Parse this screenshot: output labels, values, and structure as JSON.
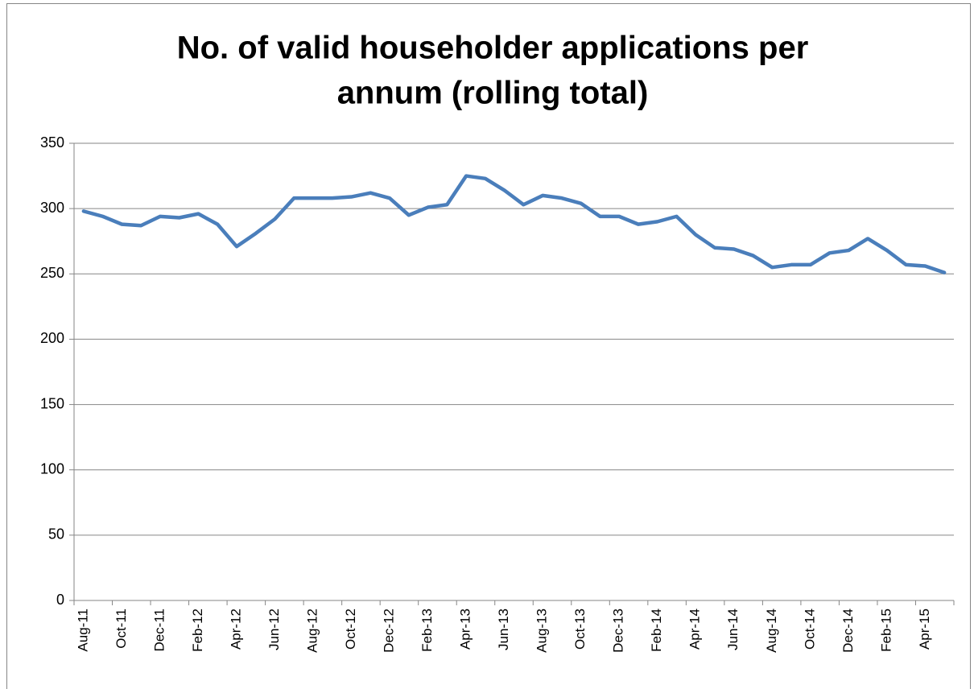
{
  "chart_data": {
    "type": "line",
    "title": [
      "No. of valid householder applications per",
      "annum (rolling total)"
    ],
    "categories": [
      "Aug-11",
      null,
      "Oct-11",
      null,
      "Dec-11",
      null,
      "Feb-12",
      null,
      "Apr-12",
      null,
      "Jun-12",
      null,
      "Aug-12",
      null,
      "Oct-12",
      null,
      "Dec-12",
      null,
      "Feb-13",
      null,
      "Apr-13",
      null,
      "Jun-13",
      null,
      "Aug-13",
      null,
      "Oct-13",
      null,
      "Dec-13",
      null,
      "Feb-14",
      null,
      "Apr-14",
      null,
      "Jun-14",
      null,
      "Aug-14",
      null,
      "Oct-14",
      null,
      "Dec-14",
      null,
      "Feb-15",
      null,
      "Apr-15",
      null
    ],
    "values": [
      298,
      294,
      288,
      287,
      294,
      293,
      296,
      288,
      271,
      281,
      292,
      308,
      308,
      308,
      309,
      312,
      308,
      295,
      301,
      303,
      325,
      323,
      314,
      303,
      310,
      308,
      304,
      294,
      294,
      288,
      290,
      294,
      280,
      270,
      269,
      264,
      255,
      257,
      257,
      266,
      268,
      277,
      268,
      257,
      256,
      251
    ],
    "color": "#4a7ebb",
    "ylim": [
      0,
      350
    ],
    "yticks": [
      0,
      50,
      100,
      150,
      200,
      250,
      300,
      350
    ],
    "grid": true
  }
}
